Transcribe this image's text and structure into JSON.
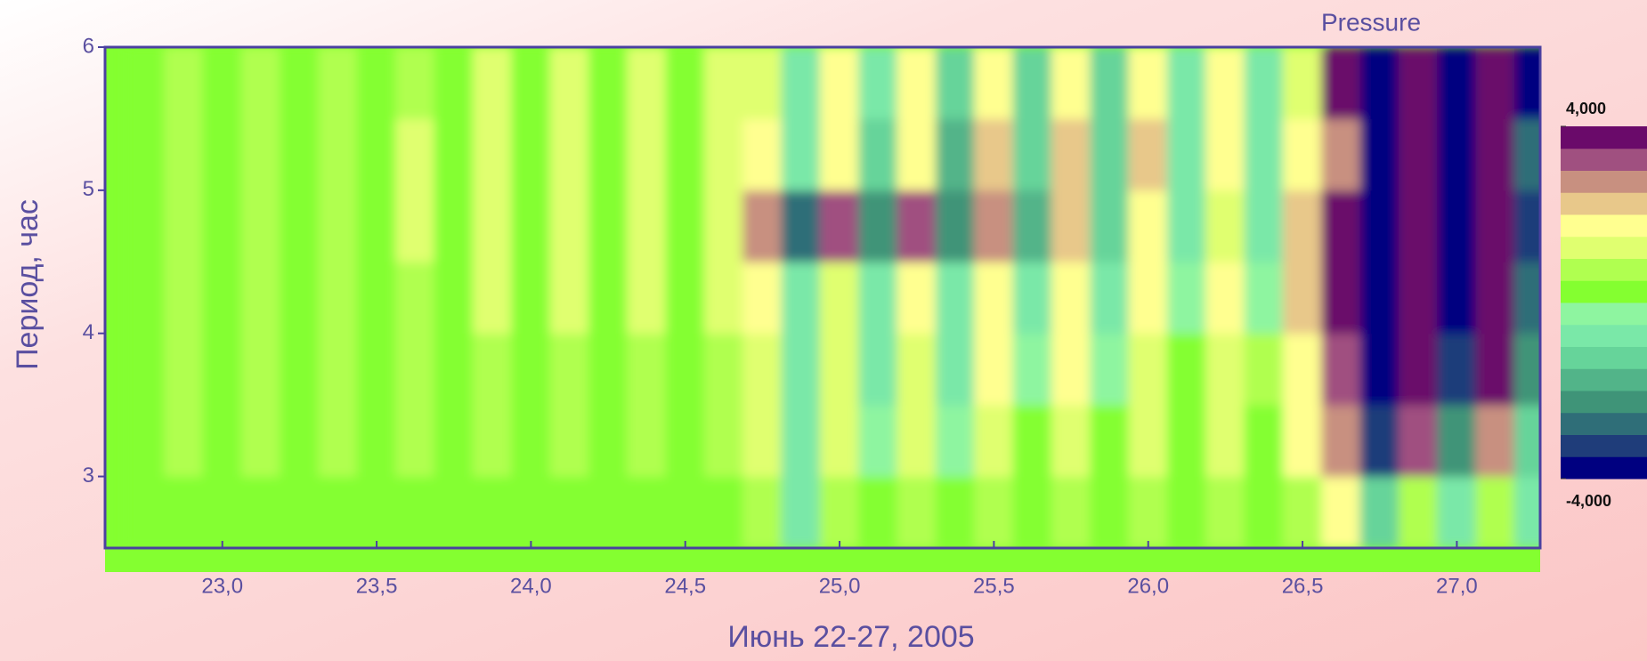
{
  "chart_data": {
    "type": "heatmap",
    "title": "Pressure",
    "xlabel": "Июнь 22-27, 2005",
    "ylabel": "Период, час",
    "x": [
      22.75,
      22.875,
      23,
      23.125,
      23.25,
      23.375,
      23.5,
      23.625,
      23.75,
      23.875,
      24,
      24.125,
      24.25,
      24.375,
      24.5,
      24.625,
      24.75,
      24.875,
      25,
      25.125,
      25.25,
      25.375,
      25.5,
      25.625,
      25.75,
      25.875,
      26,
      26.125,
      26.25,
      26.375,
      26.5,
      26.625,
      26.75,
      26.875,
      27,
      27.125,
      27.25
    ],
    "y": [
      2.75,
      3.25,
      3.75,
      4.25,
      4.75,
      5.25,
      5.75
    ],
    "z": [
      [
        200,
        400,
        200,
        400,
        200,
        400,
        200,
        400,
        200,
        400,
        200,
        400,
        200,
        400,
        200,
        400,
        800,
        -600,
        600,
        300,
        700,
        200,
        600,
        300,
        700,
        200,
        600,
        300,
        700,
        200,
        800,
        1500,
        -1200,
        600,
        -800,
        900,
        -600
      ],
      [
        200,
        500,
        200,
        500,
        200,
        500,
        200,
        600,
        200,
        600,
        200,
        600,
        200,
        700,
        200,
        700,
        1200,
        -800,
        1000,
        -500,
        1100,
        -400,
        1000,
        400,
        1200,
        300,
        1100,
        400,
        1200,
        300,
        1500,
        2500,
        -3500,
        3000,
        -2500,
        2800,
        -1500
      ],
      [
        300,
        600,
        300,
        600,
        300,
        700,
        300,
        700,
        300,
        800,
        300,
        800,
        300,
        900,
        300,
        900,
        1300,
        -900,
        1200,
        -800,
        1400,
        -600,
        1600,
        -400,
        1500,
        -300,
        1400,
        200,
        1300,
        500,
        1800,
        3000,
        -4000,
        3500,
        -3500,
        3800,
        -2500
      ],
      [
        300,
        700,
        300,
        700,
        300,
        800,
        300,
        900,
        300,
        1000,
        300,
        1100,
        300,
        1200,
        300,
        1200,
        1500,
        -1000,
        1400,
        -900,
        1500,
        -1000,
        1600,
        -800,
        1700,
        -600,
        1800,
        -400,
        1900,
        -500,
        2000,
        3800,
        -4000,
        3500,
        -4000,
        3800,
        -3000
      ],
      [
        300,
        800,
        300,
        800,
        300,
        900,
        300,
        1000,
        300,
        1100,
        300,
        1200,
        300,
        1300,
        300,
        1400,
        2800,
        -3000,
        3000,
        -2500,
        3200,
        -2500,
        2800,
        -2000,
        2000,
        -1500,
        1500,
        -800,
        1400,
        -600,
        2000,
        4000,
        -4000,
        3800,
        -4000,
        3600,
        -3500
      ],
      [
        300,
        700,
        300,
        800,
        300,
        900,
        300,
        1000,
        300,
        1100,
        300,
        1200,
        300,
        1300,
        300,
        1300,
        1500,
        -1000,
        1700,
        -1200,
        1800,
        -2000,
        2000,
        -1500,
        2200,
        -1200,
        2000,
        -1000,
        1800,
        -800,
        1500,
        2500,
        -4000,
        3500,
        -4000,
        3800,
        -3000
      ],
      [
        200,
        600,
        200,
        700,
        200,
        800,
        200,
        900,
        200,
        1000,
        200,
        1100,
        200,
        1200,
        200,
        1200,
        1400,
        -800,
        1500,
        -1000,
        1700,
        -1200,
        1800,
        -1500,
        1900,
        -1300,
        1800,
        -1000,
        1600,
        -800,
        1400,
        3500,
        -4000,
        4000,
        -4000,
        3800,
        -4000
      ]
    ],
    "xlim": [
      22.62,
      27.27
    ],
    "ylim": [
      2.5,
      6
    ],
    "xticks": [
      {
        "value": 23,
        "label": "23,0"
      },
      {
        "value": 23.5,
        "label": "23,5"
      },
      {
        "value": 24,
        "label": "24,0"
      },
      {
        "value": 24.5,
        "label": "24,5"
      },
      {
        "value": 25,
        "label": "25,0"
      },
      {
        "value": 25.5,
        "label": "25,5"
      },
      {
        "value": 26,
        "label": "26,0"
      },
      {
        "value": 26.5,
        "label": "26,5"
      },
      {
        "value": 27,
        "label": "27,0"
      }
    ],
    "yticks": [
      3,
      4,
      5,
      6
    ],
    "colorbar": {
      "zlim": [
        -4000,
        4000
      ],
      "colors": [
        "#000080",
        "#1f3d7a",
        "#2f6e78",
        "#3f9478",
        "#52b489",
        "#66d49a",
        "#7ae8a8",
        "#8ef5a0",
        "#84ff30",
        "#b0ff50",
        "#e0ff70",
        "#ffff90",
        "#e8c88a",
        "#c89080",
        "#a05080",
        "#6a0a6a"
      ],
      "ticks": [
        {
          "value": 4000,
          "label": "4,000"
        },
        {
          "value": -4000,
          "label": "-4,000"
        }
      ]
    }
  }
}
